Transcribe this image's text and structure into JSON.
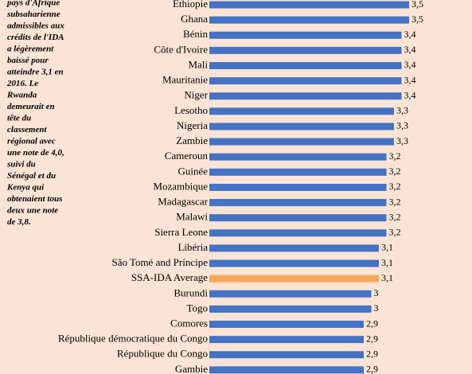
{
  "note_lines": [
    "pays d'Afrique",
    "subsaharienne",
    "admissibles aux",
    "crédits de l'IDA",
    "a légèrement",
    "baissé pour",
    "atteindre 3,1 en",
    "2016. Le",
    "Rwanda",
    "demeurait en",
    "tête du",
    "classement",
    "régional avec",
    "une note de 4,0,",
    "suivi du",
    "Sénégal et du",
    "Kenya qui",
    "obtenaient tous",
    "deux une note",
    "de 3,8."
  ],
  "chart_data": {
    "type": "hbar",
    "categories": [
      "Éthiopie",
      "Ghana",
      "Bénin",
      "Côte d'Ivoire",
      "Mali",
      "Mauritanie",
      "Niger",
      "Lesotho",
      "Nigeria",
      "Zambie",
      "Cameroun",
      "Guinée",
      "Mozambique",
      "Madagascar",
      "Malawi",
      "Sierra Leone",
      "Libéria",
      "São Tomé and Príncipe",
      "SSA-IDA Average",
      "Burundi",
      "Togo",
      "Comores",
      "République démocratique du Congo",
      "République du Congo",
      "Gambie"
    ],
    "values": [
      3.5,
      3.5,
      3.4,
      3.4,
      3.4,
      3.4,
      3.4,
      3.3,
      3.3,
      3.3,
      3.2,
      3.2,
      3.2,
      3.2,
      3.2,
      3.2,
      3.1,
      3.1,
      3.1,
      3,
      3,
      2.9,
      2.9,
      2.9,
      2.9
    ],
    "value_labels": [
      "3,5",
      "3,5",
      "3,4",
      "3,4",
      "3,4",
      "3,4",
      "3,4",
      "3,3",
      "3,3",
      "3,3",
      "3,2",
      "3,2",
      "3,2",
      "3,2",
      "3,2",
      "3,2",
      "3,1",
      "3,1",
      "3,1",
      "3",
      "3",
      "2,9",
      "2,9",
      "2,9",
      "2,9"
    ],
    "colors": [
      "#4472c4",
      "#4472c4",
      "#4472c4",
      "#4472c4",
      "#4472c4",
      "#4472c4",
      "#4472c4",
      "#4472c4",
      "#4472c4",
      "#4472c4",
      "#4472c4",
      "#4472c4",
      "#4472c4",
      "#4472c4",
      "#4472c4",
      "#4472c4",
      "#4472c4",
      "#4472c4",
      "#f4a95a",
      "#4472c4",
      "#4472c4",
      "#4472c4",
      "#4472c4",
      "#4472c4",
      "#4472c4"
    ],
    "xlim": [
      0,
      4
    ]
  }
}
